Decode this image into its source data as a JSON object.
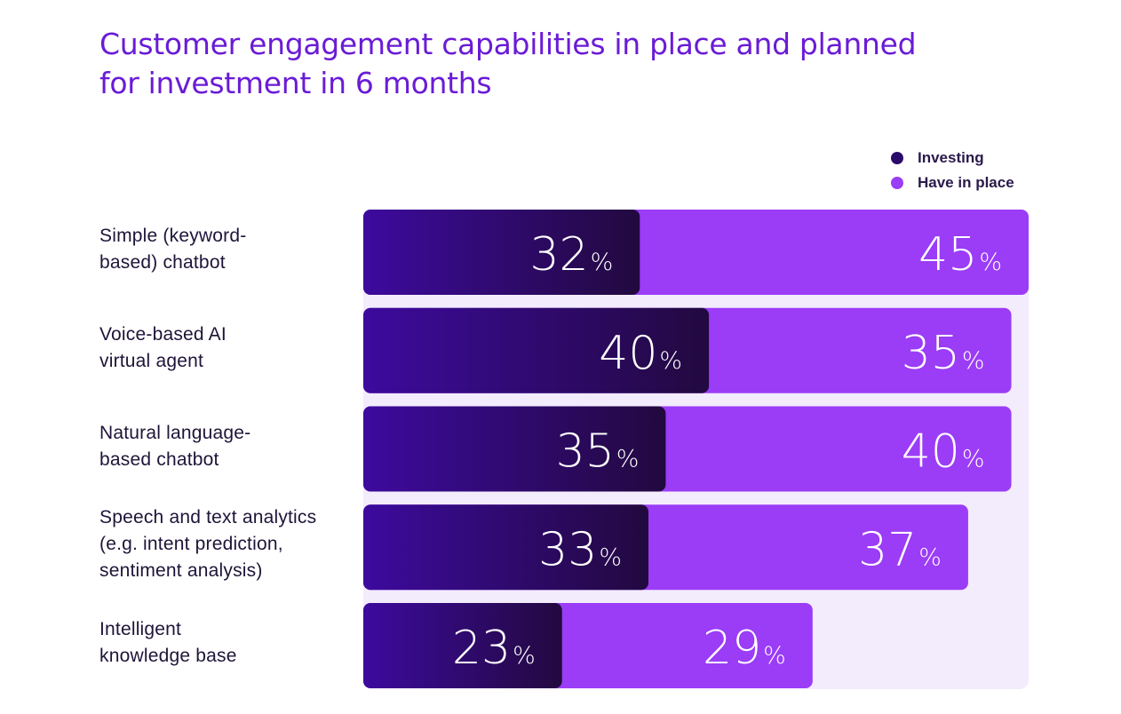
{
  "chart_data": {
    "type": "bar",
    "stacked": true,
    "orientation": "horizontal",
    "title": "Customer engagement capabilities in place and planned for investment in 6 months",
    "categories": [
      "Simple (keyword-based) chatbot",
      "Voice-based AI virtual agent",
      "Natural language-based chatbot",
      "Speech and text analytics (e.g. intent prediction, sentiment analysis)",
      "Intelligent knowledge base"
    ],
    "category_lines": [
      [
        "Simple (keyword-",
        "based) chatbot"
      ],
      [
        "Voice-based AI",
        "virtual agent"
      ],
      [
        "Natural language-",
        "based chatbot"
      ],
      [
        "Speech and text analytics",
        "(e.g. intent prediction,",
        "sentiment analysis)"
      ],
      [
        "Intelligent",
        "knowledge base"
      ]
    ],
    "series": [
      {
        "name": "Investing",
        "values": [
          32,
          40,
          35,
          33,
          23
        ],
        "color": "#3d0a9e",
        "color_end": "#22093f"
      },
      {
        "name": "Have in place",
        "values": [
          45,
          35,
          40,
          37,
          29
        ],
        "color": "#9b3cf7"
      }
    ],
    "value_suffix": "%",
    "xlim": [
      0,
      77
    ],
    "legend_position": "top-right",
    "grid": false,
    "colors": {
      "title": "#6a1bd6",
      "panel": "#f3ecfd",
      "label_text": "#1f1438"
    }
  }
}
